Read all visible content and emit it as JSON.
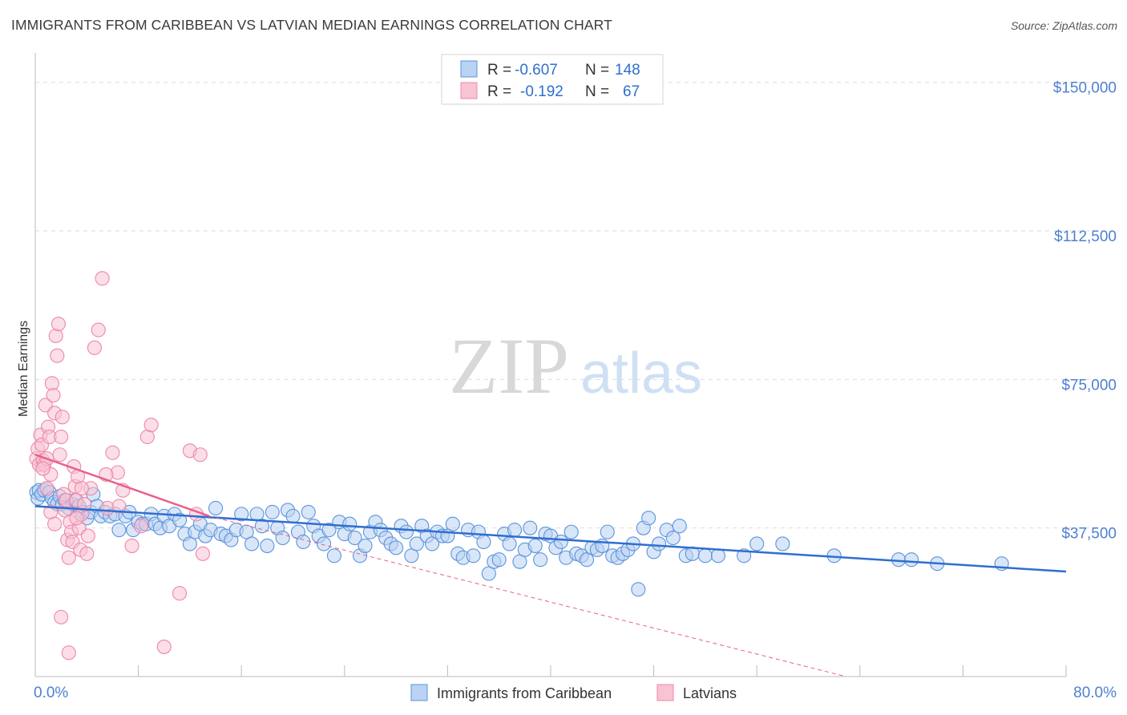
{
  "header": {
    "title": "IMMIGRANTS FROM CARIBBEAN VS LATVIAN MEDIAN EARNINGS CORRELATION CHART",
    "source": "Source: ZipAtlas.com"
  },
  "watermark": {
    "zip": "ZIP",
    "atlas": "atlas"
  },
  "colors": {
    "blue": "#5b94db",
    "blue_fill": "#bad2f3",
    "blue_line": "#2f6fcf",
    "pink": "#ee88a8",
    "pink_fill": "#f8c3d3",
    "pink_line": "#e8608a",
    "axis_text": "#4f7fd0",
    "grid": "#dddddd"
  },
  "legend_top": [
    {
      "r_label": "R =",
      "r_value": "-0.607",
      "n_label": "N =",
      "n_value": "148"
    },
    {
      "r_label": "R =",
      "r_value": "-0.192",
      "n_label": "N =",
      "n_value": "67"
    }
  ],
  "chart_data": {
    "type": "scatter",
    "title": "IMMIGRANTS FROM CARIBBEAN VS LATVIAN MEDIAN EARNINGS CORRELATION CHART",
    "xlabel": "",
    "ylabel": "Median Earnings",
    "x_unit": "percent",
    "xlim": [
      0,
      80
    ],
    "ylim": [
      0,
      155000
    ],
    "x_tick_labels": [
      "0.0%",
      "80.0%"
    ],
    "y_ticks": [
      37500,
      75000,
      112500,
      150000
    ],
    "y_tick_labels": [
      "$37,500",
      "$75,000",
      "$112,500",
      "$150,000"
    ],
    "grid": true,
    "legend_position": "bottom-center",
    "series": [
      {
        "name": "Immigrants from Caribbean",
        "color": "#5b94db",
        "trendline": {
          "x": [
            0,
            80
          ],
          "y": [
            43000,
            26500
          ]
        },
        "points": [
          [
            0.1,
            46500
          ],
          [
            0.2,
            45000
          ],
          [
            0.3,
            47000
          ],
          [
            0.5,
            46000
          ],
          [
            0.7,
            47000
          ],
          [
            0.9,
            47500
          ],
          [
            1.1,
            46500
          ],
          [
            1.3,
            45000
          ],
          [
            1.5,
            44000
          ],
          [
            1.7,
            43500
          ],
          [
            1.9,
            45500
          ],
          [
            2.1,
            43500
          ],
          [
            2.3,
            44500
          ],
          [
            2.6,
            42500
          ],
          [
            2.9,
            43500
          ],
          [
            3.1,
            44500
          ],
          [
            3.4,
            43000
          ],
          [
            3.7,
            41500
          ],
          [
            4.0,
            40000
          ],
          [
            4.3,
            41500
          ],
          [
            4.5,
            46000
          ],
          [
            4.8,
            43000
          ],
          [
            5.1,
            40500
          ],
          [
            5.4,
            41500
          ],
          [
            5.8,
            40500
          ],
          [
            6.2,
            41000
          ],
          [
            6.5,
            37000
          ],
          [
            7.0,
            40500
          ],
          [
            7.3,
            41500
          ],
          [
            7.6,
            37000
          ],
          [
            8.0,
            39000
          ],
          [
            8.3,
            38500
          ],
          [
            8.6,
            38500
          ],
          [
            9.0,
            41000
          ],
          [
            9.3,
            38500
          ],
          [
            9.7,
            37500
          ],
          [
            10.0,
            40500
          ],
          [
            10.4,
            38000
          ],
          [
            10.8,
            41000
          ],
          [
            11.2,
            39500
          ],
          [
            11.6,
            36000
          ],
          [
            12.0,
            33500
          ],
          [
            12.4,
            36500
          ],
          [
            12.8,
            38500
          ],
          [
            13.2,
            35500
          ],
          [
            13.6,
            37000
          ],
          [
            14.0,
            42500
          ],
          [
            14.4,
            36000
          ],
          [
            14.8,
            35500
          ],
          [
            15.2,
            34500
          ],
          [
            15.6,
            37000
          ],
          [
            16.0,
            41000
          ],
          [
            16.4,
            36500
          ],
          [
            16.8,
            33500
          ],
          [
            17.2,
            41000
          ],
          [
            17.6,
            38000
          ],
          [
            18.0,
            33000
          ],
          [
            18.4,
            41500
          ],
          [
            18.8,
            37500
          ],
          [
            19.2,
            35000
          ],
          [
            19.6,
            42000
          ],
          [
            20.0,
            40500
          ],
          [
            20.4,
            36500
          ],
          [
            20.8,
            34000
          ],
          [
            21.2,
            41500
          ],
          [
            21.6,
            38000
          ],
          [
            22.0,
            35500
          ],
          [
            22.4,
            33500
          ],
          [
            22.8,
            37000
          ],
          [
            23.2,
            30500
          ],
          [
            23.6,
            39000
          ],
          [
            24.0,
            36000
          ],
          [
            24.4,
            38500
          ],
          [
            24.8,
            35000
          ],
          [
            25.2,
            30500
          ],
          [
            25.6,
            33000
          ],
          [
            26.0,
            36500
          ],
          [
            26.4,
            39000
          ],
          [
            26.8,
            37000
          ],
          [
            27.2,
            35000
          ],
          [
            27.6,
            33500
          ],
          [
            28.0,
            32500
          ],
          [
            28.4,
            38000
          ],
          [
            28.8,
            36500
          ],
          [
            29.2,
            30500
          ],
          [
            29.6,
            33500
          ],
          [
            30.0,
            38000
          ],
          [
            30.4,
            35500
          ],
          [
            30.8,
            33500
          ],
          [
            31.2,
            36500
          ],
          [
            31.6,
            35500
          ],
          [
            32.0,
            35500
          ],
          [
            32.4,
            38500
          ],
          [
            32.8,
            31000
          ],
          [
            33.2,
            30000
          ],
          [
            33.6,
            37000
          ],
          [
            34.0,
            30500
          ],
          [
            34.4,
            36500
          ],
          [
            34.8,
            34000
          ],
          [
            35.2,
            26000
          ],
          [
            35.6,
            29000
          ],
          [
            36.0,
            29500
          ],
          [
            36.4,
            36000
          ],
          [
            36.8,
            33500
          ],
          [
            37.2,
            37000
          ],
          [
            37.6,
            29000
          ],
          [
            38.0,
            32000
          ],
          [
            38.4,
            37500
          ],
          [
            38.8,
            33000
          ],
          [
            39.2,
            29500
          ],
          [
            39.6,
            36000
          ],
          [
            40.0,
            35500
          ],
          [
            40.4,
            32500
          ],
          [
            40.8,
            34000
          ],
          [
            41.2,
            30000
          ],
          [
            41.6,
            36500
          ],
          [
            42.0,
            31000
          ],
          [
            42.4,
            30500
          ],
          [
            42.8,
            29500
          ],
          [
            43.2,
            32500
          ],
          [
            43.6,
            32000
          ],
          [
            44.0,
            33000
          ],
          [
            44.4,
            36500
          ],
          [
            44.8,
            30500
          ],
          [
            45.2,
            30000
          ],
          [
            45.6,
            31000
          ],
          [
            46.0,
            32000
          ],
          [
            46.4,
            33500
          ],
          [
            46.8,
            22000
          ],
          [
            47.2,
            37500
          ],
          [
            47.6,
            40000
          ],
          [
            48.0,
            31500
          ],
          [
            48.4,
            33500
          ],
          [
            49.0,
            37000
          ],
          [
            49.5,
            35000
          ],
          [
            50.0,
            38000
          ],
          [
            50.5,
            30500
          ],
          [
            51.0,
            31000
          ],
          [
            52.0,
            30500
          ],
          [
            53.0,
            30500
          ],
          [
            55.0,
            30500
          ],
          [
            56.0,
            33500
          ],
          [
            58.0,
            33500
          ],
          [
            62.0,
            30500
          ],
          [
            67.0,
            29500
          ],
          [
            68.0,
            29500
          ],
          [
            70.0,
            28500
          ],
          [
            75.0,
            28500
          ]
        ]
      },
      {
        "name": "Latvians",
        "color": "#ee88a8",
        "trendline": {
          "x": [
            0,
            13.5
          ],
          "y": [
            56000,
            40500
          ]
        },
        "trendline_dashed": {
          "x": [
            13.5,
            80
          ],
          "y": [
            40500,
            -14000
          ]
        },
        "points": [
          [
            0.1,
            55000
          ],
          [
            0.2,
            57500
          ],
          [
            0.3,
            53500
          ],
          [
            0.4,
            61000
          ],
          [
            0.5,
            58500
          ],
          [
            0.6,
            54500
          ],
          [
            0.7,
            53500
          ],
          [
            0.8,
            68500
          ],
          [
            0.9,
            55000
          ],
          [
            1.0,
            63000
          ],
          [
            1.1,
            60500
          ],
          [
            1.2,
            51000
          ],
          [
            1.3,
            74000
          ],
          [
            1.4,
            71000
          ],
          [
            1.5,
            66500
          ],
          [
            1.6,
            86000
          ],
          [
            1.7,
            81000
          ],
          [
            1.8,
            89000
          ],
          [
            1.9,
            56000
          ],
          [
            2.0,
            60500
          ],
          [
            2.1,
            65500
          ],
          [
            2.2,
            46000
          ],
          [
            2.3,
            42000
          ],
          [
            2.4,
            44500
          ],
          [
            2.5,
            34500
          ],
          [
            2.6,
            30000
          ],
          [
            2.7,
            39000
          ],
          [
            2.8,
            36500
          ],
          [
            2.9,
            34000
          ],
          [
            3.0,
            53000
          ],
          [
            3.1,
            48000
          ],
          [
            3.2,
            44500
          ],
          [
            3.3,
            50500
          ],
          [
            3.4,
            37500
          ],
          [
            3.5,
            32000
          ],
          [
            3.6,
            41000
          ],
          [
            3.8,
            43500
          ],
          [
            4.0,
            31000
          ],
          [
            4.3,
            47500
          ],
          [
            4.6,
            83000
          ],
          [
            4.9,
            87500
          ],
          [
            5.2,
            100500
          ],
          [
            5.6,
            42500
          ],
          [
            6.0,
            56500
          ],
          [
            6.4,
            51500
          ],
          [
            6.8,
            47000
          ],
          [
            7.5,
            33000
          ],
          [
            8.2,
            38000
          ],
          [
            8.7,
            60500
          ],
          [
            9.0,
            63500
          ],
          [
            10.0,
            7500
          ],
          [
            11.2,
            21000
          ],
          [
            12.0,
            57000
          ],
          [
            12.5,
            41000
          ],
          [
            13.0,
            31000
          ],
          [
            0.6,
            52500
          ],
          [
            0.9,
            47500
          ],
          [
            1.2,
            41500
          ],
          [
            1.5,
            38500
          ],
          [
            2.0,
            15000
          ],
          [
            2.6,
            6000
          ],
          [
            3.2,
            40000
          ],
          [
            3.6,
            47500
          ],
          [
            4.1,
            35500
          ],
          [
            5.5,
            51000
          ],
          [
            6.5,
            43000
          ],
          [
            12.8,
            56000
          ]
        ]
      }
    ]
  }
}
